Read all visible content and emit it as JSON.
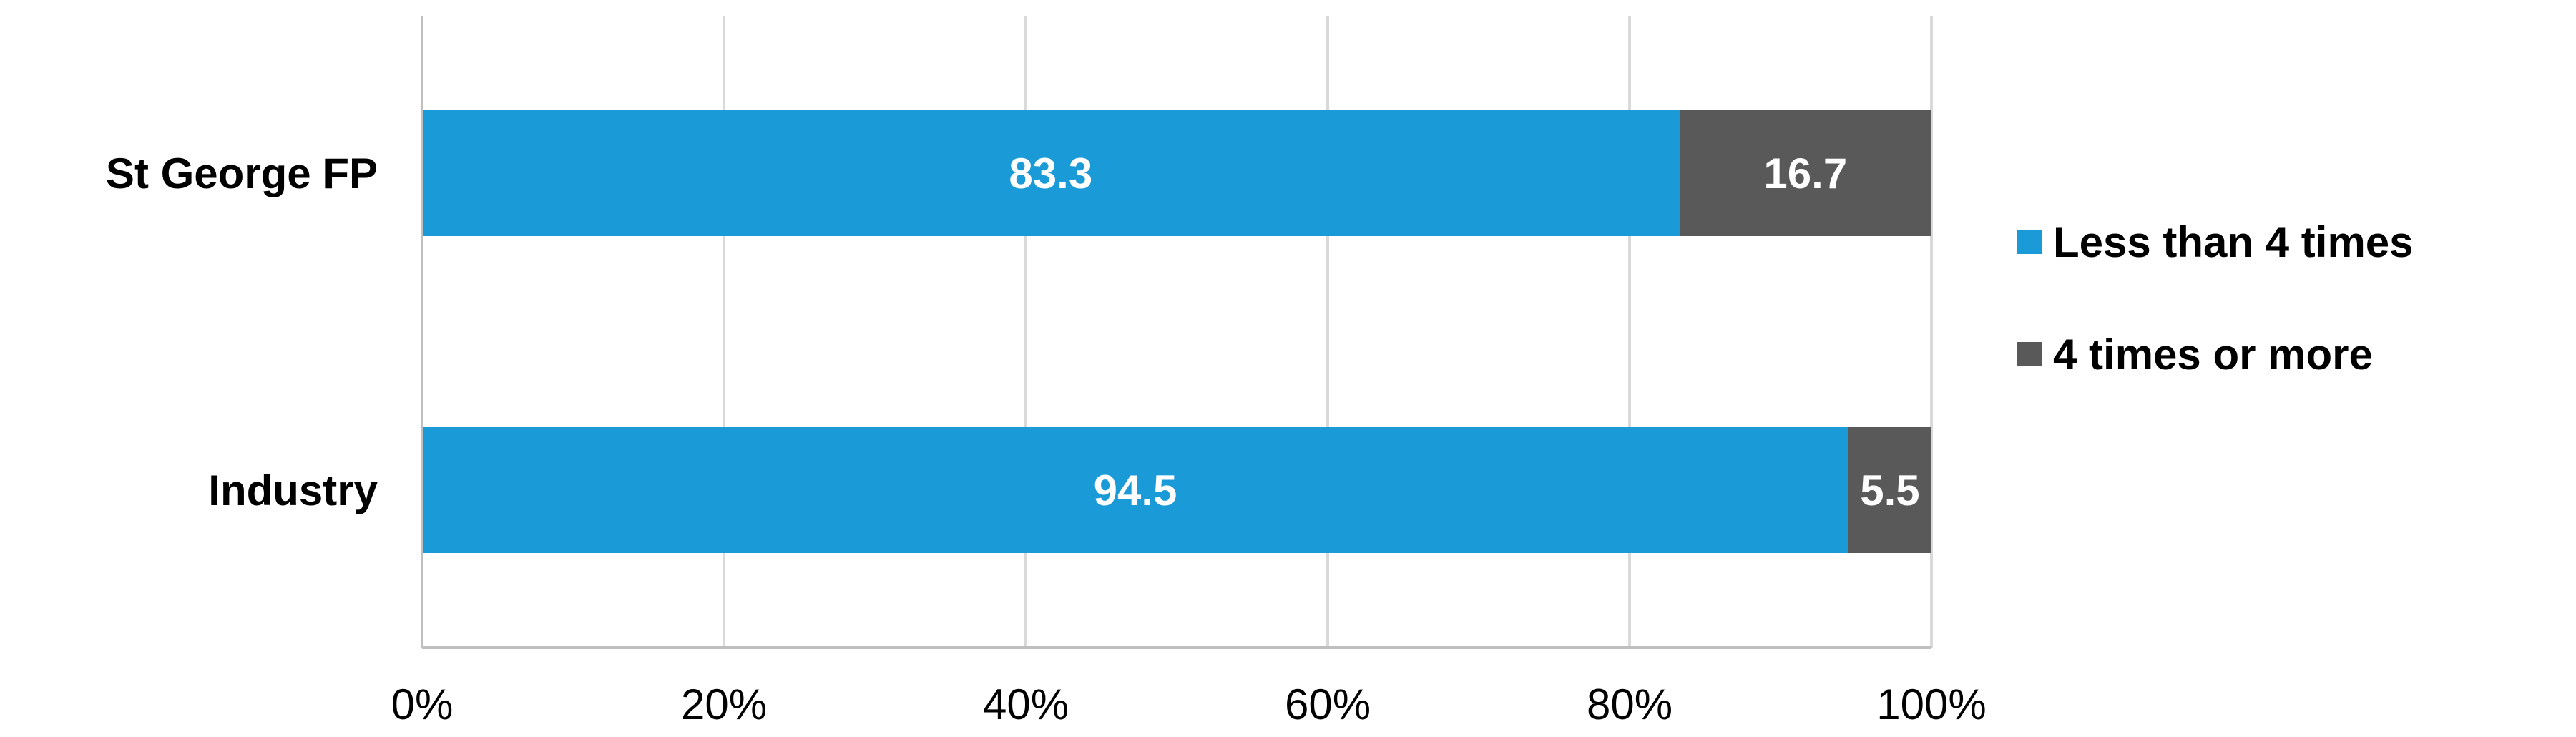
{
  "chart_data": {
    "type": "bar",
    "orientation": "horizontal",
    "stacked": true,
    "categories": [
      "St George FP",
      "Industry"
    ],
    "series": [
      {
        "name": "Less than 4 times",
        "color": "#1a9ad6",
        "values": [
          83.3,
          94.5
        ]
      },
      {
        "name": "4 times or more",
        "color": "#595959",
        "values": [
          16.7,
          5.5
        ]
      }
    ],
    "x_ticks": [
      "0%",
      "20%",
      "40%",
      "60%",
      "80%",
      "100%"
    ],
    "xlim": [
      0,
      100
    ],
    "grid": true,
    "legend_position": "right",
    "title": "",
    "xlabel": "",
    "ylabel": ""
  }
}
